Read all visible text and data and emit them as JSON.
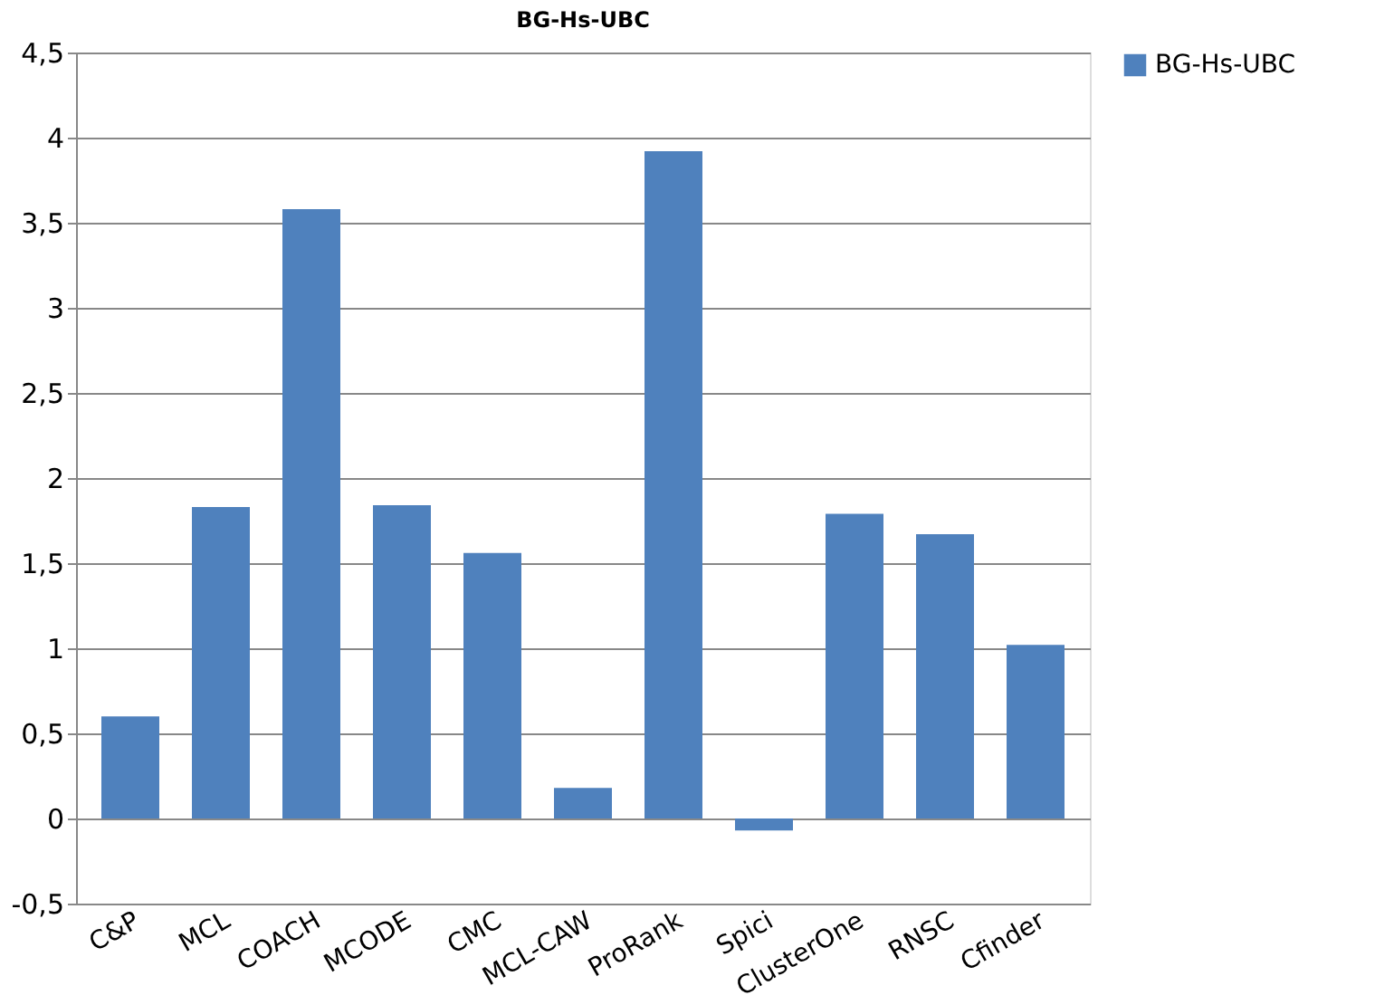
{
  "chart_data": {
    "type": "bar",
    "title": "BG-Hs-UBC",
    "categories": [
      "C&P",
      "MCL",
      "COACH",
      "MCODE",
      "CMC",
      "MCL-CAW",
      "ProRank",
      "Spici",
      "ClusterOne",
      "RNSC",
      "Cfinder"
    ],
    "series": [
      {
        "name": "BG-Hs-UBC",
        "color": "#4f81bd",
        "values": [
          0.6,
          1.83,
          3.58,
          1.84,
          1.56,
          0.18,
          3.92,
          -0.07,
          1.79,
          1.67,
          1.02
        ]
      }
    ],
    "ylim": [
      -0.5,
      4.5
    ],
    "yticks": [
      {
        "value": -0.5,
        "label": "-0,5"
      },
      0,
      {
        "value": 0.5,
        "label": "0,5"
      },
      1,
      {
        "value": 1.5,
        "label": "1,5"
      },
      2,
      {
        "value": 2.5,
        "label": "2,5"
      },
      3,
      {
        "value": 3.5,
        "label": "3,5"
      },
      4,
      {
        "value": 4.5,
        "label": "4,5"
      }
    ],
    "grid": "y",
    "legend": "right"
  }
}
